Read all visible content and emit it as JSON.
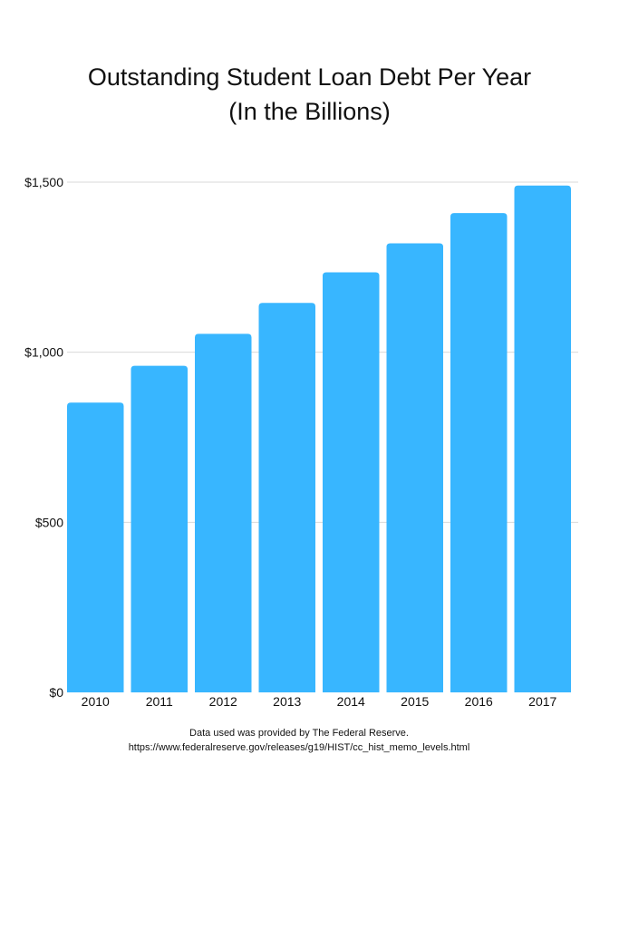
{
  "chart_data": {
    "type": "bar",
    "title_lines": [
      "Outstanding Student Loan Debt Per Year",
      "(In the Billions)"
    ],
    "categories": [
      "2010",
      "2011",
      "2012",
      "2013",
      "2014",
      "2015",
      "2016",
      "2017"
    ],
    "values": [
      852,
      960,
      1054,
      1145,
      1235,
      1320,
      1409,
      1490
    ],
    "ylim": [
      0,
      1500
    ],
    "yticks": [
      0,
      500,
      1000,
      1500
    ],
    "ytick_labels": [
      "$0",
      "$500",
      "$1,000",
      "$1,500"
    ],
    "xlabel": "",
    "ylabel": "",
    "grid": true,
    "legend": "none",
    "bar_color": "#38b6ff",
    "grid_color": "#d9d9d9"
  },
  "source_note": {
    "line1": "Data used was provided by The Federal Reserve.",
    "line2": "https://www.federalreserve.gov/releases/g19/HIST/cc_hist_memo_levels.html"
  }
}
